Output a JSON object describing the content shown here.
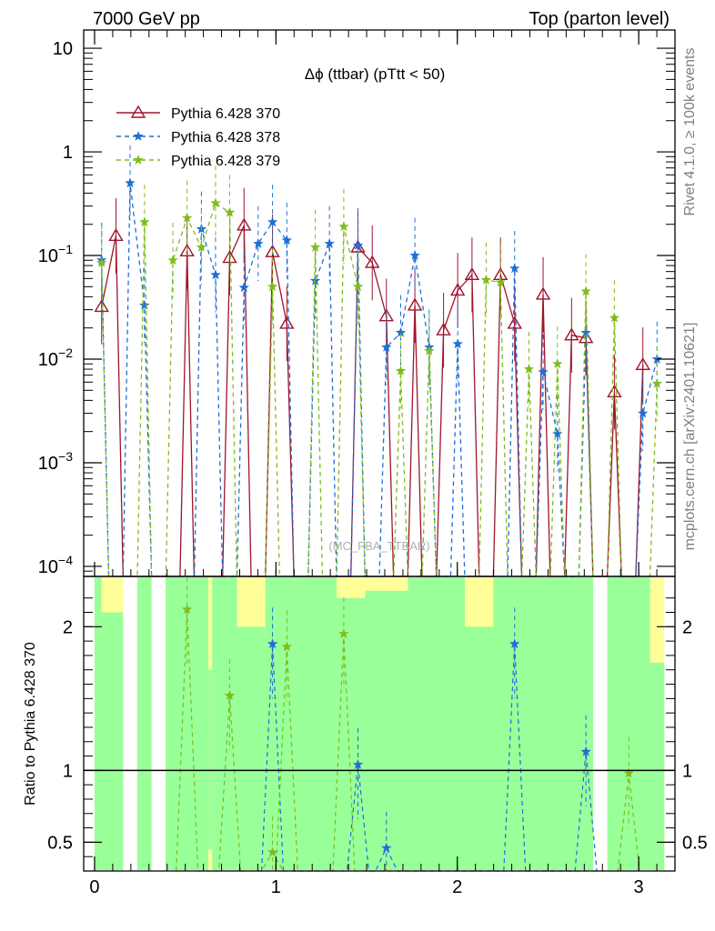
{
  "header": {
    "left": "7000 GeV pp",
    "right": "Top (parton level)"
  },
  "side": {
    "rivet": "Rivet 4.1.0, ≥ 100k events",
    "mcplots": "mcplots.cern.ch [arXiv:2401.10621]"
  },
  "watermark": "(MC_FBA_TTBAR)",
  "chart_data": {
    "type": "line",
    "title": "Δϕ (ttbar) (pTtt < 50)",
    "xlabel": "",
    "ylabel_main": "",
    "ylabel_ratio": "Ratio to Pythia 6.428 370",
    "xlim": [
      -0.06,
      3.2
    ],
    "ylim_main": [
      8e-05,
      15
    ],
    "ylim_ratio": [
      0.3,
      2.35
    ],
    "x_ticks": [
      {
        "v": 0,
        "label": "0"
      },
      {
        "v": 1,
        "label": "1"
      },
      {
        "v": 2,
        "label": "2"
      },
      {
        "v": 3,
        "label": "3"
      }
    ],
    "y_ticks_main": [
      {
        "v": 0.0001,
        "base": "10",
        "exp": "−4"
      },
      {
        "v": 0.001,
        "base": "10",
        "exp": "−3"
      },
      {
        "v": 0.01,
        "base": "10",
        "exp": "−2"
      },
      {
        "v": 0.1,
        "base": "10",
        "exp": "−1"
      },
      {
        "v": 1,
        "base": "1",
        "exp": ""
      },
      {
        "v": 10,
        "base": "10",
        "exp": ""
      }
    ],
    "y_ticks_ratio": [
      {
        "v": 0.5,
        "label": "0.5"
      },
      {
        "v": 1,
        "label": "1"
      },
      {
        "v": 2,
        "label": "2"
      }
    ],
    "series": [
      {
        "name": "Pythia 6.428 370",
        "color": "#a0142c",
        "marker": "triangle",
        "dash": "",
        "points": [
          [
            0.039,
            0.032
          ],
          [
            0.118,
            0.155
          ],
          [
            0.51,
            0.11
          ],
          [
            0.745,
            0.095
          ],
          [
            0.824,
            0.195
          ],
          [
            0.981,
            0.108
          ],
          [
            1.06,
            0.022
          ],
          [
            1.452,
            0.12
          ],
          [
            1.531,
            0.085
          ],
          [
            1.609,
            0.026
          ],
          [
            1.766,
            0.033
          ],
          [
            1.924,
            0.019
          ],
          [
            2.002,
            0.046
          ],
          [
            2.081,
            0.065
          ],
          [
            2.238,
            0.065
          ],
          [
            2.316,
            0.022
          ],
          [
            2.473,
            0.042
          ],
          [
            2.63,
            0.017
          ],
          [
            2.709,
            0.016
          ],
          [
            2.866,
            0.0048
          ],
          [
            3.023,
            0.0088
          ]
        ]
      },
      {
        "name": "Pythia 6.428 378",
        "color": "#1f6fd6",
        "marker": "star",
        "dash": "5,4",
        "points": [
          [
            0.039,
            0.09
          ],
          [
            0.196,
            0.5
          ],
          [
            0.275,
            0.033
          ],
          [
            0.589,
            0.18
          ],
          [
            0.667,
            0.065
          ],
          [
            0.824,
            0.049
          ],
          [
            0.902,
            0.13
          ],
          [
            0.981,
            0.21
          ],
          [
            1.06,
            0.14
          ],
          [
            1.217,
            0.057
          ],
          [
            1.295,
            0.13
          ],
          [
            1.452,
            0.125
          ],
          [
            1.609,
            0.013
          ],
          [
            1.688,
            0.018
          ],
          [
            1.766,
            0.1
          ],
          [
            1.845,
            0.013
          ],
          [
            2.002,
            0.014
          ],
          [
            2.316,
            0.075
          ],
          [
            2.473,
            0.0075
          ],
          [
            2.552,
            0.0019
          ],
          [
            2.709,
            0.018
          ],
          [
            3.023,
            0.003
          ],
          [
            3.101,
            0.01
          ]
        ]
      },
      {
        "name": "Pythia 6.428 379",
        "color": "#7fbc1e",
        "marker": "star",
        "dash": "5,4",
        "points": [
          [
            0.039,
            0.085
          ],
          [
            0.275,
            0.21
          ],
          [
            0.432,
            0.09
          ],
          [
            0.51,
            0.23
          ],
          [
            0.589,
            0.12
          ],
          [
            0.667,
            0.32
          ],
          [
            0.745,
            0.26
          ],
          [
            0.981,
            0.05
          ],
          [
            1.217,
            0.12
          ],
          [
            1.374,
            0.19
          ],
          [
            1.452,
            0.05
          ],
          [
            1.688,
            0.0077
          ],
          [
            1.845,
            0.012
          ],
          [
            2.159,
            0.058
          ],
          [
            2.238,
            0.055
          ],
          [
            2.395,
            0.008
          ],
          [
            2.552,
            0.009
          ],
          [
            2.709,
            0.045
          ],
          [
            2.866,
            0.025
          ],
          [
            3.101,
            0.0058
          ]
        ]
      }
    ],
    "ratio_series": [
      {
        "name": "Pythia 6.428 378",
        "color": "#1f6fd6",
        "points": [
          [
            0.981,
            1.88
          ],
          [
            1.452,
            1.04
          ],
          [
            1.609,
            0.46
          ],
          [
            2.316,
            1.88
          ],
          [
            2.709,
            1.13
          ]
        ]
      },
      {
        "name": "Pythia 6.428 379",
        "color": "#7fbc1e",
        "points": [
          [
            0.51,
            2.12
          ],
          [
            0.745,
            1.52
          ],
          [
            0.981,
            0.43
          ],
          [
            1.06,
            1.86
          ],
          [
            1.374,
            1.95
          ],
          [
            2.945,
            0.98
          ]
        ]
      }
    ],
    "ratio_bands": [
      {
        "x": [
          0.0,
          0.039
        ],
        "yellow": [
          0.3,
          2.35
        ],
        "green": [
          0.3,
          2.35
        ]
      },
      {
        "x": [
          0.039,
          0.157
        ],
        "yellow": [
          0.3,
          2.35
        ],
        "green": [
          0.3,
          2.1
        ]
      },
      {
        "x": [
          0.235,
          0.314
        ],
        "yellow": [
          0.3,
          2.35
        ],
        "green": [
          0.3,
          2.35
        ]
      },
      {
        "x": [
          0.392,
          0.628
        ],
        "yellow": [
          0.3,
          2.35
        ],
        "green": [
          0.3,
          2.35
        ]
      },
      {
        "x": [
          0.628,
          0.648
        ],
        "yellow": [
          0.3,
          2.35
        ],
        "green": [
          0.45,
          1.7
        ]
      },
      {
        "x": [
          0.648,
          0.785
        ],
        "yellow": [
          0.3,
          2.35
        ],
        "green": [
          0.3,
          2.35
        ]
      },
      {
        "x": [
          0.785,
          0.942
        ],
        "yellow": [
          0.3,
          2.35
        ],
        "green": [
          0.3,
          2.0
        ]
      },
      {
        "x": [
          0.942,
          1.099
        ],
        "yellow": [
          0.3,
          2.35
        ],
        "green": [
          0.3,
          2.35
        ]
      },
      {
        "x": [
          1.099,
          1.334
        ],
        "yellow": [
          0.3,
          2.35
        ],
        "green": [
          0.3,
          2.35
        ]
      },
      {
        "x": [
          1.334,
          1.492
        ],
        "yellow": [
          0.3,
          2.35
        ],
        "green": [
          0.3,
          2.2
        ]
      },
      {
        "x": [
          1.492,
          1.728
        ],
        "yellow": [
          0.3,
          2.35
        ],
        "green": [
          0.3,
          2.25
        ]
      },
      {
        "x": [
          1.728,
          2.042
        ],
        "yellow": [
          0.3,
          2.35
        ],
        "green": [
          0.3,
          2.35
        ]
      },
      {
        "x": [
          2.042,
          2.199
        ],
        "yellow": [
          0.3,
          2.35
        ],
        "green": [
          0.3,
          2.0
        ]
      },
      {
        "x": [
          2.199,
          2.435
        ],
        "yellow": [
          0.3,
          2.35
        ],
        "green": [
          0.3,
          2.35
        ]
      },
      {
        "x": [
          2.435,
          2.749
        ],
        "yellow": [
          0.3,
          2.35
        ],
        "green": [
          0.3,
          2.35
        ]
      },
      {
        "x": [
          2.827,
          3.063
        ],
        "yellow": [
          0.3,
          2.35
        ],
        "green": [
          0.3,
          2.35
        ]
      },
      {
        "x": [
          3.063,
          3.141
        ],
        "yellow": [
          0.3,
          2.35
        ],
        "green": [
          0.3,
          1.75
        ]
      }
    ]
  }
}
